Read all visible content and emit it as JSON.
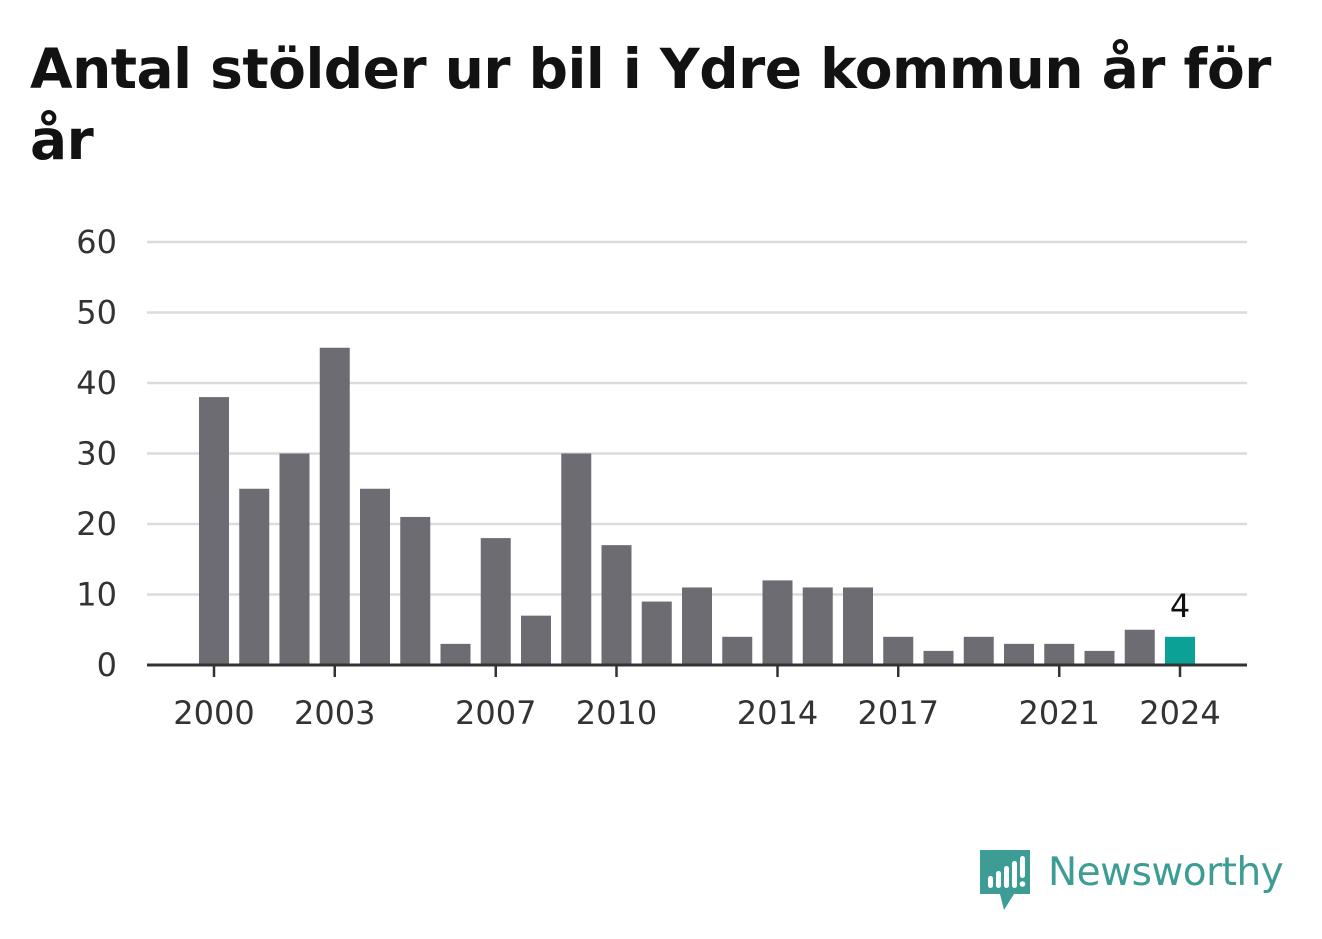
{
  "title": "Antal stölder ur bil i Ydre kommun år för år",
  "brand": {
    "name": "Newsworthy",
    "icon": "newsworthy-logo-icon",
    "color": "#3d9d95"
  },
  "colors": {
    "bar": "#6d6c72",
    "highlight": "#0ba197",
    "grid": "#dcdcdc",
    "axis": "#333333"
  },
  "chart_data": {
    "type": "bar",
    "x": [
      2000,
      2001,
      2002,
      2003,
      2004,
      2005,
      2006,
      2007,
      2008,
      2009,
      2010,
      2011,
      2012,
      2013,
      2014,
      2015,
      2016,
      2017,
      2018,
      2019,
      2020,
      2021,
      2022,
      2023,
      2024
    ],
    "values": [
      38,
      25,
      30,
      45,
      25,
      21,
      3,
      18,
      7,
      30,
      17,
      9,
      11,
      4,
      12,
      11,
      11,
      4,
      2,
      4,
      3,
      3,
      2,
      5,
      4
    ],
    "xticks": [
      "2000",
      "2003",
      "2007",
      "2010",
      "2014",
      "2017",
      "2021",
      "2024"
    ],
    "yticks": [
      "0",
      "10",
      "20",
      "30",
      "40",
      "50",
      "60"
    ],
    "ylim": [
      0,
      60
    ],
    "highlight": {
      "x": 2024,
      "label": "4"
    },
    "grid": true,
    "title": "Antal stölder ur bil i Ydre kommun år för år"
  }
}
